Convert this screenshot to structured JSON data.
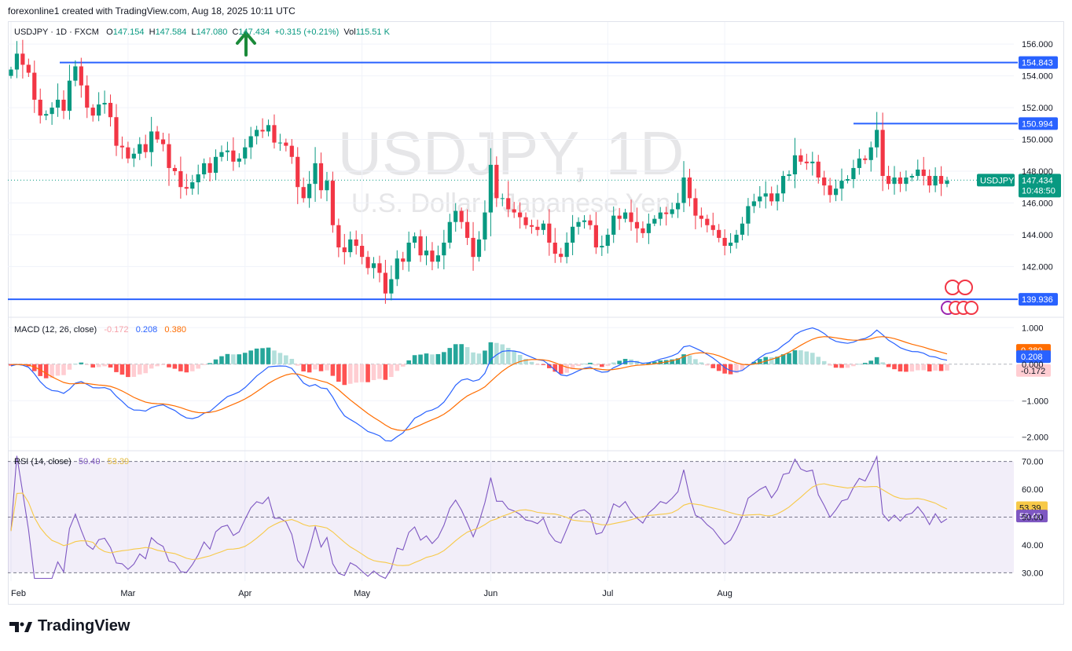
{
  "caption": "forexonline1 created with TradingView.com, Aug 18, 2025 10:11 UTC",
  "legend": {
    "symbol": "USDJPY · 1D · FXCM",
    "open_label": "O",
    "open": "147.154",
    "high_label": "H",
    "high": "147.584",
    "low_label": "L",
    "low": "147.080",
    "close_label": "C",
    "close": "147.434",
    "change": "+0.315 (+0.21%)",
    "vol_label": "Vol",
    "vol": "115.51 K"
  },
  "watermark": {
    "title": "USDJPY, 1D",
    "subtitle": "U.S. Dollar / Japanese Yen"
  },
  "footer": {
    "brand": "TradingView"
  },
  "colors": {
    "up": "#089981",
    "down": "#f23645",
    "line": "#2962ff",
    "orange": "#ff6d00",
    "rsi": "#7e57c2",
    "rsi_ma": "#f7c948"
  },
  "chart_data": [
    {
      "type": "candlestick",
      "title": "USDJPY, 1D",
      "ylim": [
        139.0,
        156.8
      ],
      "yticks": [
        "156.000",
        "154.000",
        "152.000",
        "150.000",
        "148.000",
        "146.000",
        "144.000",
        "142.000"
      ],
      "xlabels": [
        "Feb",
        "Mar",
        "Apr",
        "May",
        "Jun",
        "Jul",
        "Aug"
      ],
      "levels": [
        {
          "value": 154.843,
          "label": "154.843"
        },
        {
          "value": 150.994,
          "label": "150.994"
        },
        {
          "value": 139.936,
          "label": "139.936"
        }
      ],
      "last_price": {
        "symbol": "USDJPY",
        "value": 147.434,
        "label": "147.434",
        "countdown": "10:48:50"
      },
      "closes": [
        154.4,
        155.4,
        154.7,
        154.2,
        152.5,
        151.5,
        151.6,
        152.0,
        152.5,
        151.8,
        153.7,
        154.6,
        153.4,
        152.0,
        151.5,
        152.2,
        152.3,
        151.4,
        149.6,
        149.5,
        148.8,
        149.1,
        149.7,
        149.2,
        150.5,
        150.0,
        149.7,
        148.2,
        148.0,
        147.0,
        146.9,
        147.3,
        147.8,
        148.5,
        147.9,
        148.9,
        149.2,
        149.3,
        148.6,
        148.8,
        149.5,
        150.2,
        150.6,
        150.5,
        150.9,
        149.8,
        149.8,
        149.6,
        148.9,
        147.0,
        146.3,
        147.2,
        148.5,
        146.8,
        147.4,
        144.6,
        143.2,
        142.9,
        143.7,
        143.3,
        142.6,
        141.9,
        142.2,
        141.6,
        140.3,
        141.2,
        142.5,
        142.3,
        143.5,
        143.9,
        142.7,
        143.0,
        142.3,
        142.7,
        143.5,
        144.8,
        145.5,
        144.8,
        143.8,
        142.6,
        143.7,
        145.4,
        148.4,
        146.3,
        146.3,
        145.6,
        145.4,
        145.1,
        144.6,
        144.5,
        144.3,
        144.7,
        143.5,
        142.8,
        142.6,
        143.5,
        144.5,
        144.8,
        144.9,
        144.6,
        143.2,
        143.3,
        144.0,
        145.2,
        145.0,
        145.4,
        144.8,
        144.4,
        144.1,
        144.7,
        145.0,
        145.4,
        145.3,
        145.6,
        146.0,
        147.6,
        146.3,
        145.2,
        145.0,
        144.6,
        144.3,
        143.8,
        143.3,
        143.5,
        144.0,
        144.7,
        145.8,
        146.1,
        146.4,
        146.6,
        146.1,
        146.6,
        147.7,
        147.8,
        149.0,
        148.6,
        148.5,
        148.6,
        147.6,
        147.1,
        146.5,
        146.9,
        147.4,
        147.5,
        148.2,
        148.8,
        148.7,
        149.5,
        150.6,
        147.7,
        147.2,
        147.6,
        147.2,
        147.6,
        147.7,
        148.1,
        147.7,
        147.1,
        147.7,
        147.2,
        147.4
      ]
    },
    {
      "type": "line",
      "title": "MACD (12, 26, close)",
      "values_label": [
        "-0.172",
        "0.208",
        "0.380"
      ],
      "ylim": [
        -2.35,
        1.2
      ],
      "yticks": [
        "1.000",
        "0.000",
        "−1.000",
        "−2.000"
      ]
    },
    {
      "type": "line",
      "title": "RSI (14, close)",
      "values_label": [
        "50.40",
        "53.39"
      ],
      "ylim": [
        27,
        73
      ],
      "yticks": [
        "70.00",
        "60.00",
        "50.00",
        "40.00",
        "30.00"
      ]
    }
  ]
}
